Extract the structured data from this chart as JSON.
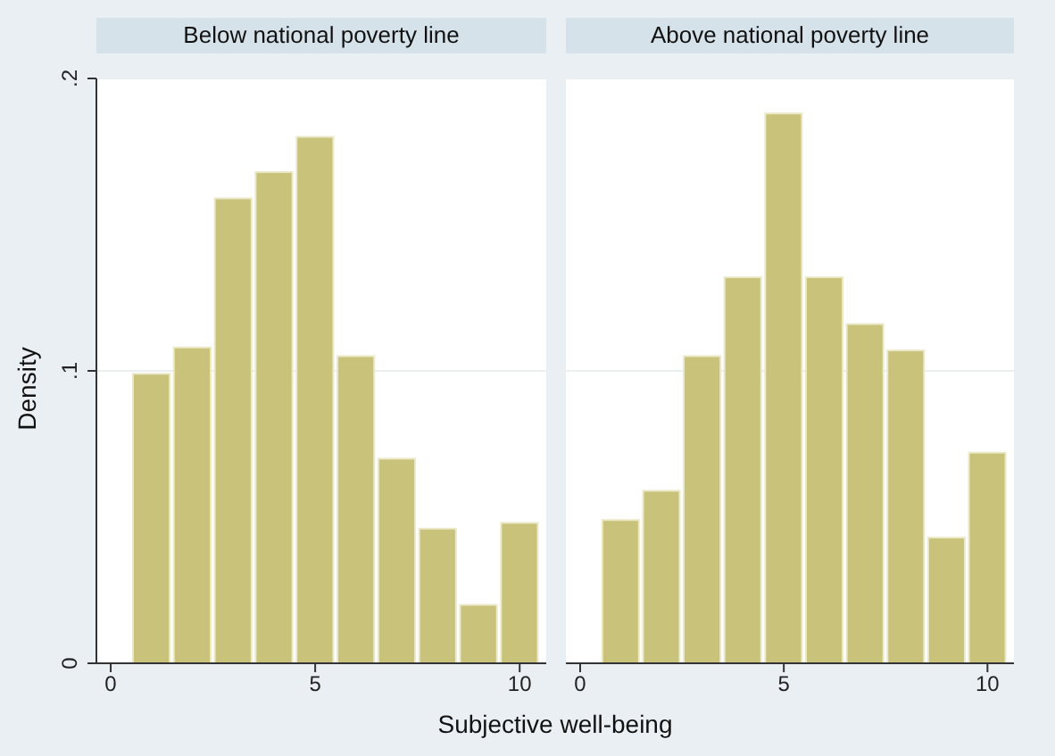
{
  "chart_data": [
    {
      "type": "histogram",
      "title": "Below national poverty line",
      "xlabel": "Subjective well-being",
      "ylabel": "Density",
      "color": "#c9c27b",
      "bins": [
        0.5,
        1.5,
        2.5,
        3.5,
        4.5,
        5.5,
        6.5,
        7.5,
        8.5,
        9.5,
        10.5
      ],
      "values": [
        0.099,
        0.108,
        0.159,
        0.168,
        0.18,
        0.105,
        0.07,
        0.046,
        0.02,
        0.048
      ],
      "xlim": [
        -0.35,
        10.65
      ],
      "xticks": [
        0,
        5,
        10
      ],
      "ylim": [
        0,
        0.2
      ],
      "yticks": [
        {
          "value": 0,
          "label": "0"
        },
        {
          "value": 0.1,
          "label": ".1"
        },
        {
          "value": 0.2,
          "label": ".2"
        }
      ],
      "grid": "y"
    },
    {
      "type": "histogram",
      "title": "Above national poverty line",
      "color": "#c9c27b",
      "bins": [
        0.5,
        1.5,
        2.5,
        3.5,
        4.5,
        5.5,
        6.5,
        7.5,
        8.5,
        9.5,
        10.5
      ],
      "values": [
        0.049,
        0.059,
        0.105,
        0.132,
        0.188,
        0.132,
        0.116,
        0.107,
        0.043,
        0.072
      ],
      "xlim": [
        -0.35,
        10.65
      ],
      "xticks": [
        0,
        5,
        10
      ],
      "ylim": [
        0,
        0.2
      ],
      "yticks": [
        0,
        0.1,
        0.2
      ],
      "grid": "y",
      "tick_labels": "x"
    }
  ]
}
